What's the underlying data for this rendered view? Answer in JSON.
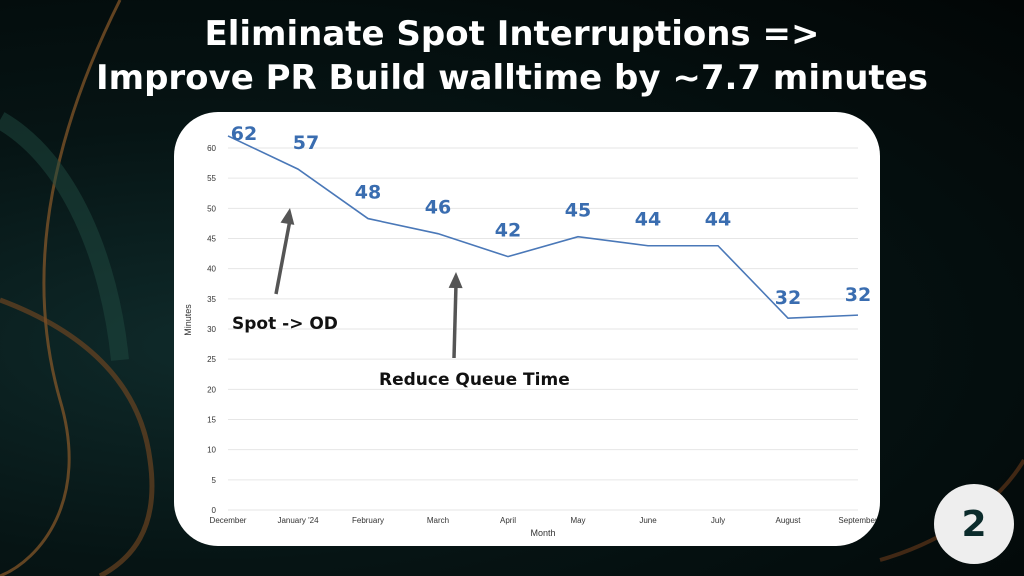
{
  "slide": {
    "title_line1": "Eliminate Spot Interruptions =>",
    "title_line2": "Improve PR Build walltime by ~7.7 minutes",
    "page_number": "2"
  },
  "colors": {
    "line": "#4a78b8",
    "data_label": "#3a6db0",
    "grid": "#e6e6e6",
    "arrow": "#555555"
  },
  "chart_data": {
    "type": "line",
    "categories": [
      "December",
      "January '24",
      "February",
      "March",
      "April",
      "May",
      "June",
      "July",
      "August",
      "September"
    ],
    "values": [
      62,
      56.5,
      48.3,
      45.8,
      42,
      45.3,
      43.8,
      43.8,
      31.8,
      32.3
    ],
    "data_labels": [
      "62",
      "57",
      "48",
      "46",
      "42",
      "45",
      "44",
      "44",
      "32",
      "32"
    ],
    "xlabel": "Month",
    "ylabel": "Minutes",
    "ylim": [
      0,
      60
    ],
    "yticks": [
      0,
      5,
      10,
      15,
      20,
      25,
      30,
      35,
      40,
      45,
      50,
      55,
      60
    ],
    "grid": true,
    "annotations": [
      {
        "text": "Spot -> OD",
        "category": "January '24",
        "value": 51
      },
      {
        "text": "Reduce Queue Time",
        "category": "March",
        "value": 41
      }
    ]
  }
}
